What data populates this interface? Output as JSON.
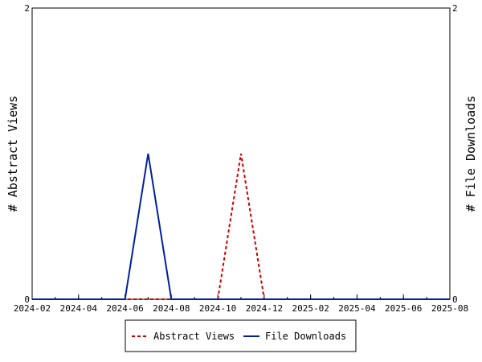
{
  "chart_data": {
    "type": "line",
    "x_ticks": [
      "2024-02",
      "2024-04",
      "2024-06",
      "2024-08",
      "2024-10",
      "2024-12",
      "2025-02",
      "2025-04",
      "2025-06",
      "2025-08"
    ],
    "x_range": [
      "2024-02",
      "2025-08"
    ],
    "y_left": {
      "label": "# Abstract Views",
      "range": [
        0,
        2
      ],
      "ticks": [
        "0",
        "2"
      ]
    },
    "y_right": {
      "label": "# File Downloads",
      "range": [
        0,
        2
      ],
      "ticks": [
        "0",
        "2"
      ]
    },
    "grid": false,
    "legend_position": "bottom-center",
    "series": [
      {
        "name": "Abstract Views",
        "axis": "left",
        "color": "#cc0000",
        "style": "dashed",
        "x": [
          "2024-02",
          "2024-03",
          "2024-04",
          "2024-05",
          "2024-06",
          "2024-07",
          "2024-08",
          "2024-09",
          "2024-10",
          "2024-11",
          "2024-12",
          "2025-01",
          "2025-02",
          "2025-03",
          "2025-04",
          "2025-05",
          "2025-06",
          "2025-07",
          "2025-08"
        ],
        "y": [
          0,
          0,
          0,
          0,
          0,
          0,
          0,
          0,
          0,
          1,
          0,
          0,
          0,
          0,
          0,
          0,
          0,
          0,
          0
        ]
      },
      {
        "name": "File Downloads",
        "axis": "right",
        "color": "#00209f",
        "style": "solid",
        "x": [
          "2024-02",
          "2024-03",
          "2024-04",
          "2024-05",
          "2024-06",
          "2024-07",
          "2024-08",
          "2024-09",
          "2024-10",
          "2024-11",
          "2024-12",
          "2025-01",
          "2025-02",
          "2025-03",
          "2025-04",
          "2025-05",
          "2025-06",
          "2025-07",
          "2025-08"
        ],
        "y": [
          0,
          0,
          0,
          0,
          0,
          1,
          0,
          0,
          0,
          0,
          0,
          0,
          0,
          0,
          0,
          0,
          0,
          0,
          0
        ]
      }
    ]
  }
}
